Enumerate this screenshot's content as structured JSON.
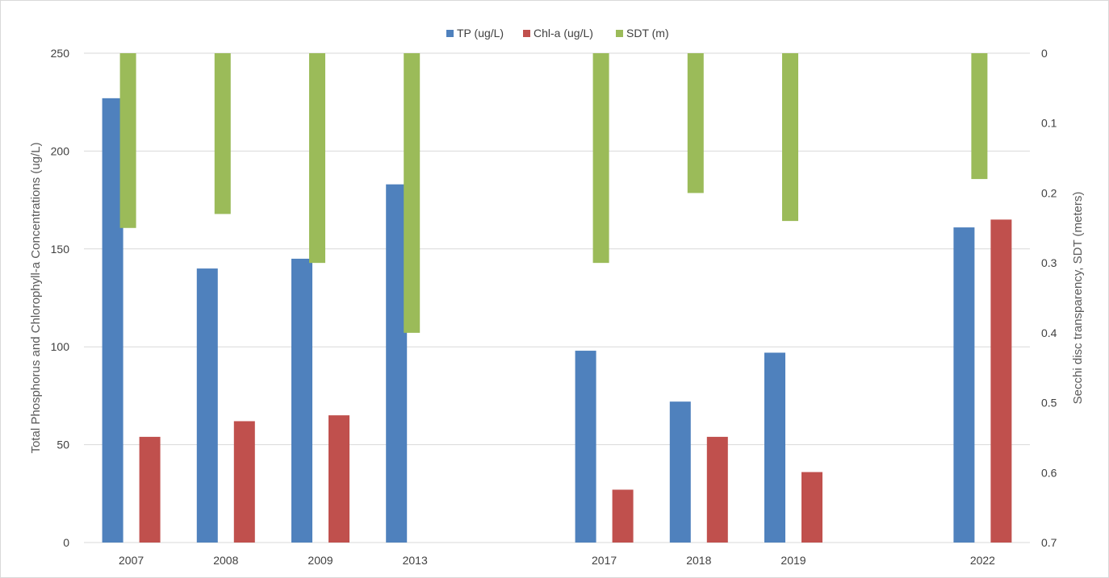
{
  "chart_data": {
    "type": "bar",
    "title": "",
    "categories": [
      "2007",
      "2008",
      "2009",
      "2013",
      "",
      "2017",
      "2018",
      "2019",
      "",
      "2022"
    ],
    "series": [
      {
        "name": "TP (ug/L)",
        "axis": "left",
        "color": "#4f81bd",
        "values": [
          227,
          140,
          145,
          183,
          null,
          98,
          72,
          97,
          null,
          161
        ]
      },
      {
        "name": "Chl-a (ug/L)",
        "axis": "left",
        "color": "#c0504d",
        "values": [
          54,
          62,
          65,
          null,
          null,
          27,
          54,
          36,
          null,
          165
        ]
      },
      {
        "name": "SDT (m)",
        "axis": "right",
        "color": "#9bbb59",
        "values": [
          0.25,
          0.23,
          0.3,
          0.4,
          null,
          0.3,
          0.2,
          0.24,
          null,
          0.18
        ]
      }
    ],
    "y_left": {
      "label": "Total Phosphorus and Chlorophyll-a Concentrations (ug/L)",
      "range": [
        0,
        250
      ],
      "ticks": [
        "0",
        "50",
        "100",
        "150",
        "200",
        "250"
      ]
    },
    "y_right": {
      "label": "Secchi disc transparency, SDT (meters)",
      "range": [
        0,
        0.7
      ],
      "reversed": true,
      "ticks": [
        "0",
        "0.1",
        "0.2",
        "0.3",
        "0.4",
        "0.5",
        "0.6",
        "0.7"
      ]
    },
    "grid": true,
    "legend_position": "top-center"
  }
}
